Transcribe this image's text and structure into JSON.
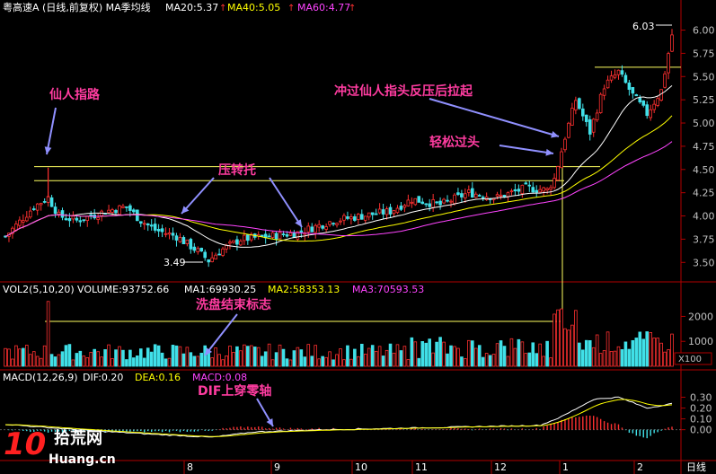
{
  "header": {
    "stock": "粤高速A",
    "mode": "(日线,前复权)",
    "ma_label": "MA季均线",
    "ma": [
      {
        "text": "MA20:5.37",
        "color": "#ffffff"
      },
      {
        "text": "MA40:5.05",
        "color": "#ffff00"
      },
      {
        "text": "MA60:4.77",
        "color": "#ff44ff"
      }
    ]
  },
  "colors": {
    "up": "#ff3030",
    "down": "#40e0e8",
    "ma20": "#ffffff",
    "ma40": "#ffff00",
    "ma60": "#ff44ff",
    "axis": "#b00000",
    "annot": "#ff3ca0",
    "grid": "#7a0000"
  },
  "annotations": [
    {
      "id": "xian-ren",
      "text": "仙人指路"
    },
    {
      "id": "ya-zhuan-tuo",
      "text": "压转托"
    },
    {
      "id": "chong-guo",
      "text": "冲过仙人指头反压后拉起"
    },
    {
      "id": "qing-song",
      "text": "轻松过头"
    },
    {
      "id": "xi-pan",
      "text": "洗盘结束标志"
    },
    {
      "id": "dif",
      "text": "DIF上穿零轴"
    }
  ],
  "price_labels": {
    "low": "3.49",
    "high": "6.03"
  },
  "volume_header": {
    "title": "VOL2(5,10,20)",
    "items": [
      {
        "text": "VOLUME:93752.66",
        "color": "#ffffff"
      },
      {
        "text": "MA1:69930.25",
        "color": "#ffffff"
      },
      {
        "text": "MA2:58353.13",
        "color": "#ffff00"
      },
      {
        "text": "MA3:70593.53",
        "color": "#ff44ff"
      }
    ],
    "unit": "X100"
  },
  "macd_header": {
    "title": "MACD(12,26,9)",
    "items": [
      {
        "text": "DIF:0.20",
        "color": "#ffffff"
      },
      {
        "text": "DEA:0.16",
        "color": "#ffff00"
      },
      {
        "text": "MACD:0.08",
        "color": "#ff44ff"
      }
    ]
  },
  "watermark": {
    "brand": "拾荒网",
    "domain": "Huang.cn"
  },
  "chart_data": {
    "type": "candlestick",
    "price_axis": {
      "range": [
        3.3,
        6.15
      ],
      "ticks": [
        "6.00",
        "5.75",
        "5.50",
        "5.25",
        "5.00",
        "4.75",
        "4.50",
        "4.25",
        "4.00",
        "3.75",
        "3.50"
      ]
    },
    "volume_axis": {
      "range": [
        0,
        2700
      ],
      "ticks": [
        "2000",
        "1000"
      ]
    },
    "macd_axis": {
      "range": [
        -0.26,
        0.42
      ],
      "ticks": [
        "0.30",
        "0.20",
        "0.10",
        "0.00"
      ]
    },
    "x_axis": {
      "labels": [
        "8",
        "9",
        "10",
        "11",
        "12",
        "1",
        "2"
      ],
      "period_label": "日线"
    },
    "levels": [
      4.53,
      4.38,
      5.6
    ]
  }
}
